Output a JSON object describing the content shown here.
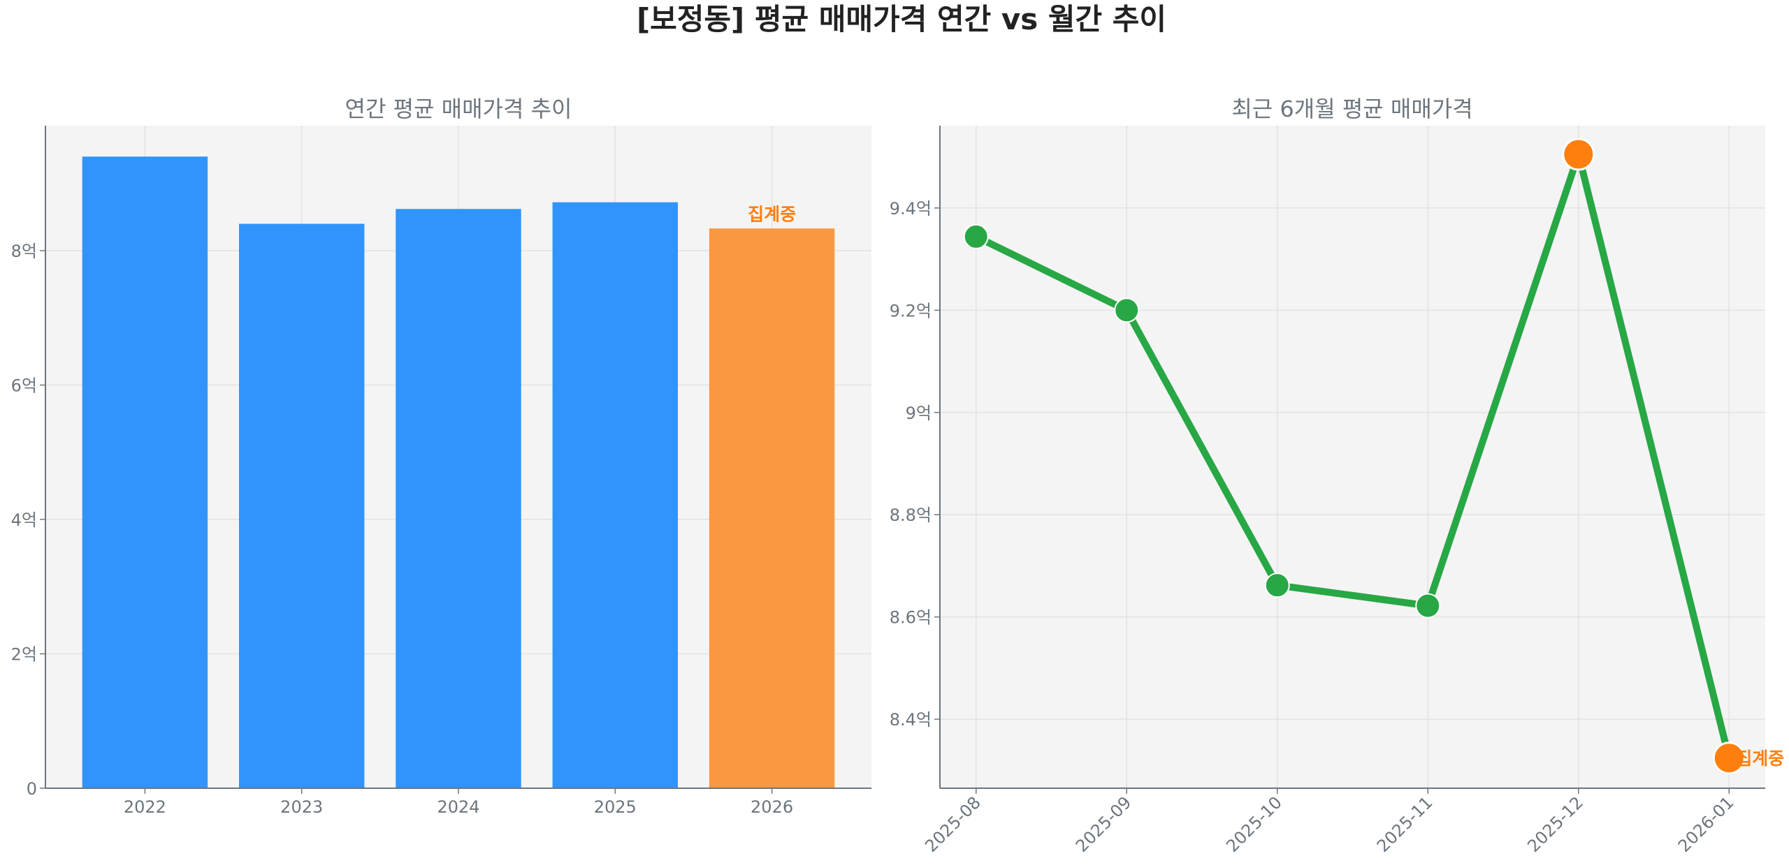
{
  "title": "[보정동] 평균 매매가격 연간 vs 월간 추이",
  "colors": {
    "bar": "#3194fc",
    "bar_partial": "#f99840",
    "line": "#28a745",
    "highlight": "#ff7f0e",
    "annotation": "#ff7f0e",
    "text": "#6c757d",
    "plot_bg": "#f4f4f4"
  },
  "chart_data": [
    {
      "type": "bar",
      "title": "연간 평균 매매가격 추이",
      "categories": [
        "2022",
        "2023",
        "2024",
        "2025",
        "2026"
      ],
      "values": [
        9.4,
        8.4,
        8.62,
        8.72,
        8.33
      ],
      "unit": "억",
      "ylim": [
        0,
        9.86
      ],
      "yticks": [
        0,
        2,
        4,
        6,
        8
      ],
      "ytick_labels": [
        "0",
        "2억",
        "4억",
        "6억",
        "8억"
      ],
      "partial_index": 4,
      "annotation": "집계중",
      "grid": true
    },
    {
      "type": "line",
      "title": "최근 6개월 평균 매매가격",
      "categories": [
        "2025-08",
        "2025-09",
        "2025-10",
        "2025-11",
        "2025-12",
        "2026-01"
      ],
      "values": [
        9.344,
        9.2,
        8.662,
        8.622,
        9.505,
        8.324
      ],
      "unit": "억",
      "ylim": [
        8.265,
        9.561
      ],
      "yticks": [
        8.4,
        8.6,
        8.8,
        9.0,
        9.2,
        9.4
      ],
      "ytick_labels": [
        "8.4억",
        "8.6억",
        "8.8억",
        "9억",
        "9.2억",
        "9.4억"
      ],
      "highlight_indices": [
        4,
        5
      ],
      "annotation": "집계중",
      "grid": true
    }
  ]
}
